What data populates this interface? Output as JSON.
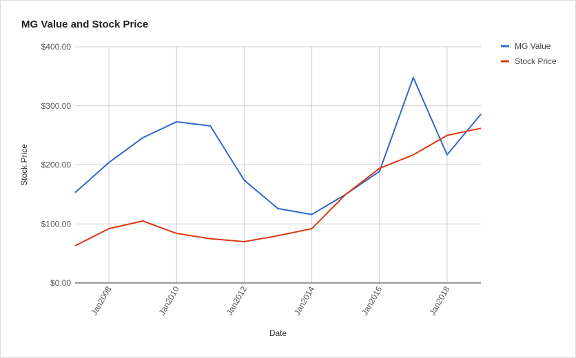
{
  "chart_data": {
    "type": "line",
    "title": "MG Value and Stock Price",
    "xlabel": "Date",
    "ylabel": "Stock Price",
    "x": [
      2007,
      2008,
      2009,
      2010,
      2011,
      2012,
      2013,
      2014,
      2015,
      2016,
      2017,
      2018,
      2019
    ],
    "xlim": [
      2007,
      2019
    ],
    "ylim": [
      0,
      400
    ],
    "x_ticks": [
      {
        "value": 2008,
        "label": "Jan2008"
      },
      {
        "value": 2010,
        "label": "Jan2010"
      },
      {
        "value": 2012,
        "label": "Jan2012"
      },
      {
        "value": 2014,
        "label": "Jan2014"
      },
      {
        "value": 2016,
        "label": "Jan2016"
      },
      {
        "value": 2018,
        "label": "Jan2018"
      }
    ],
    "y_ticks": [
      {
        "value": 0,
        "label": "$0.00"
      },
      {
        "value": 100,
        "label": "$100.00"
      },
      {
        "value": 200,
        "label": "$200.00"
      },
      {
        "value": 300,
        "label": "$300.00"
      },
      {
        "value": 400,
        "label": "$400.00"
      }
    ],
    "series": [
      {
        "name": "MG Value",
        "color": "#3366cc",
        "values": [
          153,
          204,
          246,
          273,
          266,
          174,
          126,
          116,
          150,
          189,
          348,
          217,
          286
        ]
      },
      {
        "name": "Stock Price",
        "color": "#dc3912",
        "values": [
          63,
          92,
          105,
          84,
          75,
          70,
          80,
          92,
          150,
          194,
          217,
          250,
          262
        ]
      }
    ],
    "grid": true,
    "legend": "right"
  }
}
